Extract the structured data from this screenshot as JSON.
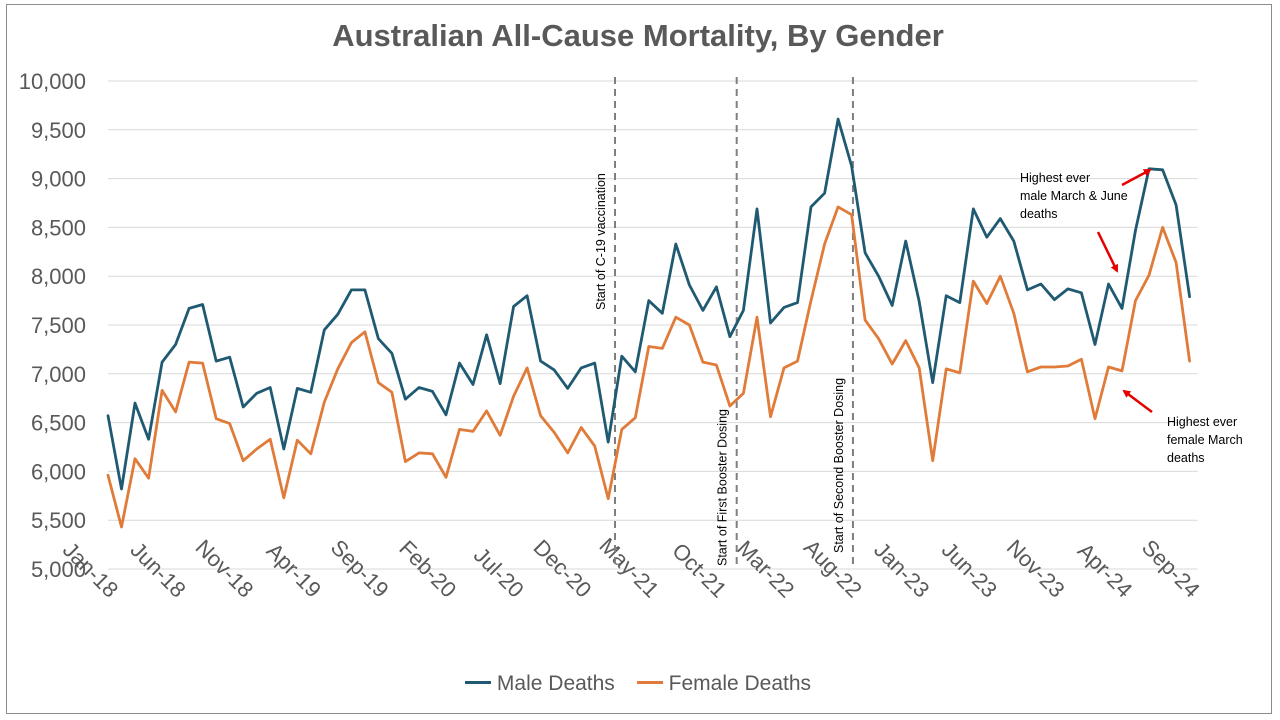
{
  "chart_data": {
    "type": "line",
    "title": "Australian All-Cause Mortality, By Gender",
    "ylim": [
      5000,
      10000
    ],
    "yticks": [
      "5,000",
      "5,500",
      "6,000",
      "6,500",
      "7,000",
      "7,500",
      "8,000",
      "8,500",
      "9,000",
      "9,500",
      "10,000"
    ],
    "ytick_values": [
      5000,
      5500,
      6000,
      6500,
      7000,
      7500,
      8000,
      8500,
      9000,
      9500,
      10000
    ],
    "xtick_labels": [
      "Jan-18",
      "Jun-18",
      "Nov-18",
      "Apr-19",
      "Sep-19",
      "Feb-20",
      "Jul-20",
      "Dec-20",
      "May-21",
      "Oct-21",
      "Mar-22",
      "Aug-22",
      "Jan-23",
      "Jun-23",
      "Nov-23",
      "Apr-24",
      "Sep-24"
    ],
    "x_start": "Jan-18",
    "gridlines": true,
    "legend_position": "bottom",
    "series": [
      {
        "name": "Male Deaths",
        "color": "#1f5a72",
        "values": [
          6570,
          5820,
          6700,
          6330,
          7120,
          7300,
          7670,
          7710,
          7130,
          7170,
          6660,
          6800,
          6860,
          6230,
          6850,
          6810,
          7450,
          7610,
          7860,
          7860,
          7360,
          7210,
          6740,
          6860,
          6820,
          6580,
          7110,
          6890,
          7400,
          6900,
          7690,
          7800,
          7130,
          7040,
          6850,
          7060,
          7110,
          6300,
          7180,
          7020,
          7750,
          7620,
          8330,
          7910,
          7650,
          7890,
          7380,
          7650,
          8690,
          7520,
          7680,
          7730,
          8710,
          8850,
          9610,
          9130,
          8240,
          8000,
          7700,
          8360,
          7740,
          6910,
          7800,
          7730,
          8690,
          8400,
          8590,
          8360,
          7860,
          7920,
          7760,
          7870,
          7830,
          7300,
          7920,
          7670,
          8470,
          9100,
          9090,
          8730,
          7790
        ]
      },
      {
        "name": "Female Deaths",
        "color": "#e07b39",
        "values": [
          5960,
          5430,
          6130,
          5930,
          6830,
          6610,
          7120,
          7110,
          6540,
          6490,
          6110,
          6230,
          6330,
          5730,
          6320,
          6180,
          6710,
          7050,
          7320,
          7430,
          6910,
          6810,
          6100,
          6190,
          6180,
          5940,
          6430,
          6410,
          6620,
          6370,
          6770,
          7060,
          6570,
          6400,
          6190,
          6450,
          6260,
          5720,
          6430,
          6550,
          7280,
          7260,
          7580,
          7500,
          7120,
          7090,
          6670,
          6800,
          7580,
          6560,
          7060,
          7130,
          7750,
          8330,
          8710,
          8630,
          7550,
          7360,
          7100,
          7340,
          7060,
          6110,
          7050,
          7010,
          7950,
          7720,
          8000,
          7620,
          7020,
          7070,
          7070,
          7080,
          7150,
          6540,
          7070,
          7030,
          7750,
          8010,
          8500,
          8140,
          7130
        ]
      }
    ],
    "vlines": [
      {
        "label": "Start of C-19 vaccination",
        "x_index": 37.5
      },
      {
        "label": "Start of First Booster Dosing",
        "x_index": 46.5
      },
      {
        "label": "Start of Second Booster Dosing",
        "x_index": 55.1
      }
    ],
    "annotations": {
      "male": [
        "Highest ever",
        "male March & June",
        "deaths"
      ],
      "female": [
        "Highest ever",
        "female March",
        "deaths"
      ]
    },
    "arrow_color": "#e60000",
    "grid_color": "#d9d9d9",
    "dash_color": "#7f7f7f"
  }
}
